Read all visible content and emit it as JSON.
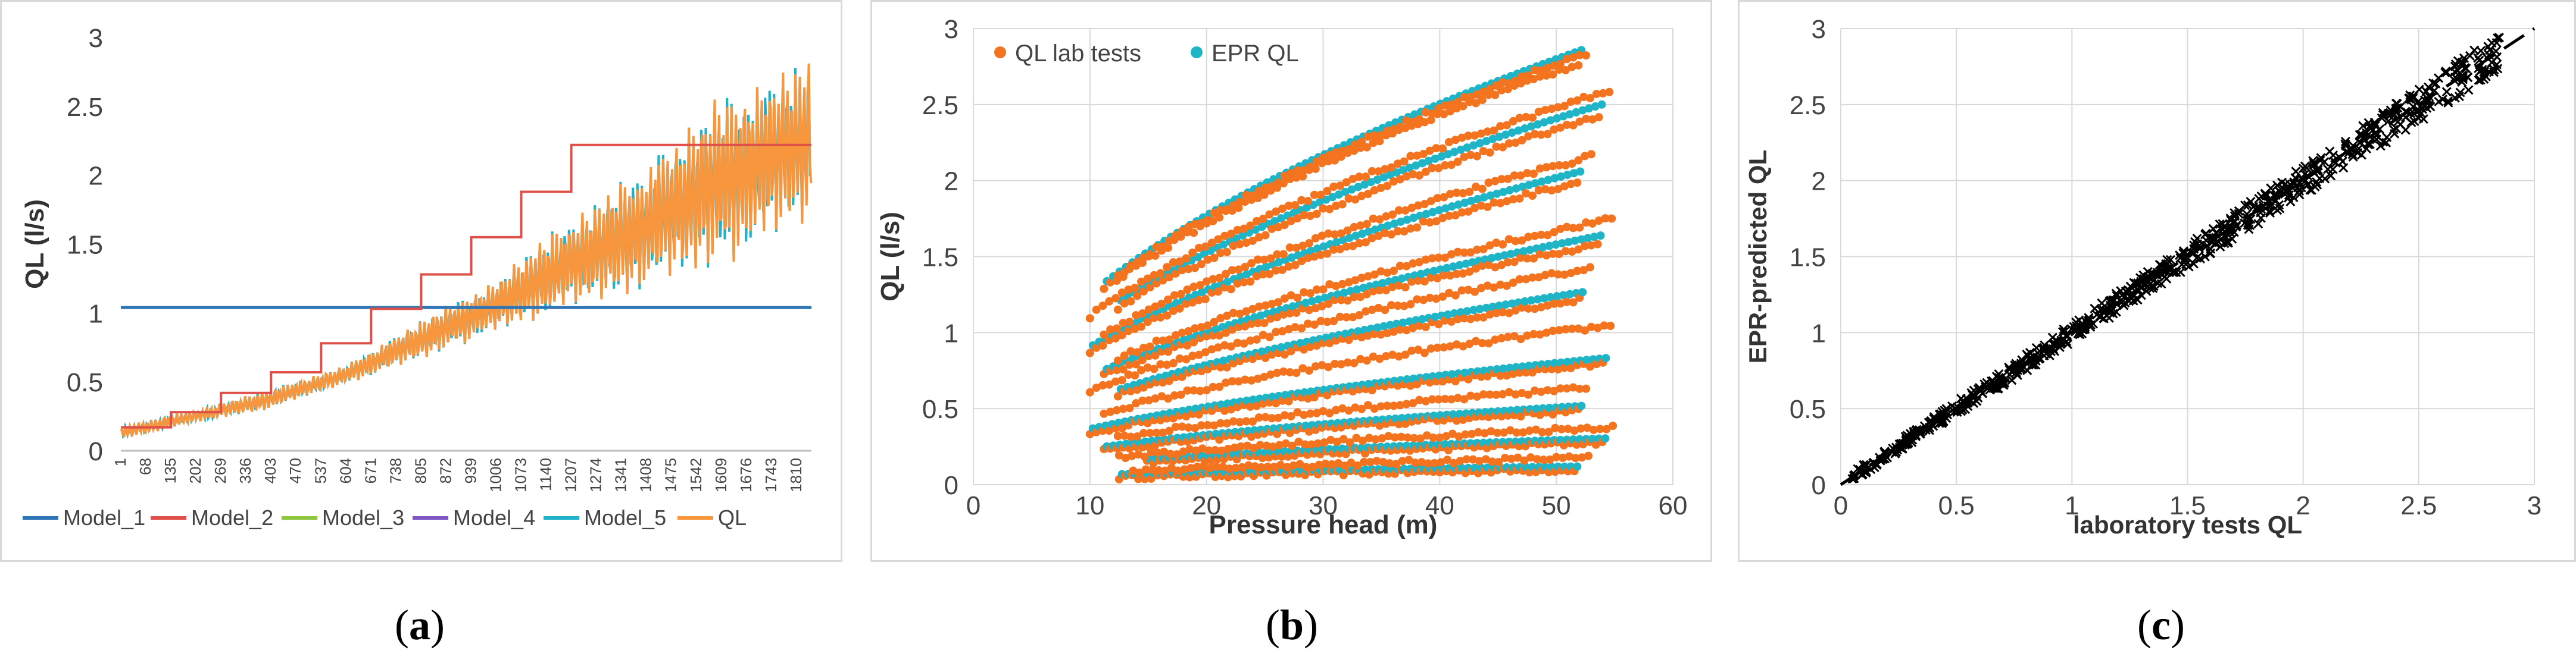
{
  "panels": [
    {
      "id": "a",
      "caption_letter": "a",
      "chart_data": {
        "type": "line",
        "title": "",
        "xlabel": "",
        "ylabel": "QL (l/s)",
        "ylim": [
          0,
          3
        ],
        "yticks": [
          "0",
          "0.5",
          "1",
          "1.5",
          "2",
          "2.5",
          "3"
        ],
        "x_tick_labels": [
          "1",
          "68",
          "135",
          "202",
          "269",
          "336",
          "403",
          "470",
          "537",
          "604",
          "671",
          "738",
          "805",
          "872",
          "939",
          "1006",
          "1073",
          "1140",
          "1207",
          "1274",
          "1341",
          "1408",
          "1475",
          "1542",
          "1609",
          "1676",
          "1743",
          "1810"
        ],
        "n_points": 1850,
        "series": [
          {
            "name": "Model_1",
            "color": "#2E75B6",
            "kind": "constant",
            "value": 1.04
          },
          {
            "name": "Model_2",
            "color": "#E0504A",
            "kind": "step",
            "breaks": [
              1,
              68,
              135,
              202,
              269,
              336,
              403,
              470,
              537,
              604,
              671,
              738,
              805,
              872,
              939,
              1006,
              1073,
              1140,
              1207,
              1274,
              1341,
              1408,
              1475,
              1542,
              1609,
              1676,
              1743,
              1810,
              1850
            ],
            "values": [
              0.17,
              0.17,
              0.28,
              0.28,
              0.42,
              0.42,
              0.57,
              0.57,
              0.78,
              0.78,
              1.03,
              1.03,
              1.28,
              1.28,
              1.55,
              1.55,
              1.88,
              1.88,
              2.22,
              2.22,
              2.22,
              2.22,
              2.22,
              2.22,
              2.22,
              2.22,
              2.22,
              2.22
            ]
          },
          {
            "name": "Model_3",
            "color": "#8DC63F",
            "kind": "hidden"
          },
          {
            "name": "Model_4",
            "color": "#7E57C2",
            "kind": "hidden"
          },
          {
            "name": "Model_5",
            "color": "#20B2C9",
            "kind": "oscillating"
          },
          {
            "name": "QL",
            "color": "#F7963C",
            "kind": "oscillating"
          }
        ],
        "envelope": {
          "x": [
            1,
            200,
            400,
            600,
            800,
            1000,
            1200,
            1400,
            1600,
            1850
          ],
          "lower": [
            0.08,
            0.2,
            0.3,
            0.48,
            0.65,
            0.85,
            1.0,
            1.15,
            1.3,
            1.65
          ],
          "upper": [
            0.18,
            0.3,
            0.45,
            0.62,
            0.95,
            1.25,
            1.7,
            2.1,
            2.6,
            2.9
          ]
        },
        "legend_position": "bottom"
      }
    },
    {
      "id": "b",
      "caption_letter": "b",
      "chart_data": {
        "type": "scatter",
        "title": "",
        "xlabel": "Pressure head (m)",
        "ylabel": "QL (l/s)",
        "xlim": [
          0,
          60
        ],
        "ylim": [
          0,
          3
        ],
        "xticks": [
          "0",
          "10",
          "20",
          "30",
          "40",
          "50",
          "60"
        ],
        "yticks": [
          "0",
          "0.5",
          "1",
          "1.5",
          "2",
          "2.5",
          "3"
        ],
        "curve_model": "y = a * x^0.5 ... x in [10,55]",
        "curves_at_x55": [
          0.1,
          0.18,
          0.28,
          0.38,
          0.5,
          0.65,
          0.8,
          1.05,
          1.25,
          1.45,
          1.6,
          1.75,
          2.05,
          2.2,
          2.45,
          2.6,
          2.85,
          2.9
        ],
        "series": [
          {
            "name": "QL lab tests",
            "color": "#F4731F"
          },
          {
            "name": "EPR QL",
            "color": "#1FB4C6"
          }
        ],
        "legend_position": "top-left"
      }
    },
    {
      "id": "c",
      "caption_letter": "c",
      "chart_data": {
        "type": "scatter",
        "title": "",
        "xlabel": "laboratory tests QL",
        "ylabel": "EPR-predicted QL",
        "xlim": [
          0,
          3
        ],
        "ylim": [
          0,
          3
        ],
        "xticks": [
          "0",
          "0.5",
          "1",
          "1.5",
          "2",
          "2.5",
          "3"
        ],
        "yticks": [
          "0",
          "0.5",
          "1",
          "1.5",
          "2",
          "2.5",
          "3"
        ],
        "reference_line": {
          "x": [
            0,
            3
          ],
          "y": [
            0,
            3
          ],
          "style": "dashed"
        },
        "point_range": [
          0.05,
          2.85
        ],
        "marker_color": "#000000"
      }
    }
  ]
}
